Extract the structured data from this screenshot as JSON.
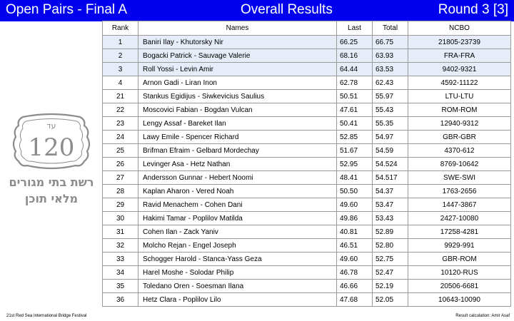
{
  "header": {
    "left_title": "Open Pairs - Final A",
    "center_title": "Overall Results",
    "right_title": "Round 3 [3]"
  },
  "columns": {
    "rank": "Rank",
    "names": "Names",
    "last": "Last",
    "total": "Total",
    "ncbo": "NCBO"
  },
  "rows": [
    {
      "rank": "1",
      "names": "Baniri Ilay - Khutorsky Nir",
      "last": "66.25",
      "total": "66.75",
      "ncbo": "21805-23739",
      "highlight": true
    },
    {
      "rank": "2",
      "names": "Bogacki Patrick - Sauvage Valerie",
      "last": "68.16",
      "total": "63.93",
      "ncbo": "FRA-FRA",
      "highlight": true
    },
    {
      "rank": "3",
      "names": "Roll Yossi - Levin Amir",
      "last": "64.44",
      "total": "63.53",
      "ncbo": "9402-9321",
      "highlight": true
    },
    {
      "rank": "4",
      "names": "Arnon Gadi - Liran Inon",
      "last": "62.78",
      "total": "62.43",
      "ncbo": "4592-11122",
      "highlight": false
    },
    {
      "rank": "21",
      "names": "Stankus Egidijus - Siwkevicius Saulius",
      "last": "50.51",
      "total": "55.97",
      "ncbo": "LTU-LTU",
      "highlight": false
    },
    {
      "rank": "22",
      "names": "Moscovici Fabian - Bogdan Vulcan",
      "last": "47.61",
      "total": "55.43",
      "ncbo": "ROM-ROM",
      "highlight": false
    },
    {
      "rank": "23",
      "names": "Lengy Assaf - Bareket Ilan",
      "last": "50.41",
      "total": "55.35",
      "ncbo": "12940-9312",
      "highlight": false
    },
    {
      "rank": "24",
      "names": "Lawy Emile - Spencer Richard",
      "last": "52.85",
      "total": "54.97",
      "ncbo": "GBR-GBR",
      "highlight": false
    },
    {
      "rank": "25",
      "names": "Brifman Efraim - Gelbard Mordechay",
      "last": "51.67",
      "total": "54.59",
      "ncbo": "4370-612",
      "highlight": false
    },
    {
      "rank": "26",
      "names": "Levinger Asa - Hetz Nathan",
      "last": "52.95",
      "total": "54.524",
      "ncbo": "8769-10642",
      "highlight": false
    },
    {
      "rank": "27",
      "names": "Andersson Gunnar - Hebert Noomi",
      "last": "48.41",
      "total": "54.517",
      "ncbo": "SWE-SWI",
      "highlight": false
    },
    {
      "rank": "28",
      "names": "Kaplan Aharon - Vered Noah",
      "last": "50.50",
      "total": "54.37",
      "ncbo": "1763-2656",
      "highlight": false
    },
    {
      "rank": "29",
      "names": "Ravid Menachem - Cohen Dani",
      "last": "49.60",
      "total": "53.47",
      "ncbo": "1447-3867",
      "highlight": false
    },
    {
      "rank": "30",
      "names": "Hakimi Tamar - Poplilov Matilda",
      "last": "49.86",
      "total": "53.43",
      "ncbo": "2427-10080",
      "highlight": false
    },
    {
      "rank": "31",
      "names": "Cohen Ilan - Zack Yaniv",
      "last": "40.81",
      "total": "52.89",
      "ncbo": "17258-4281",
      "highlight": false
    },
    {
      "rank": "32",
      "names": "Molcho Rejan - Engel Joseph",
      "last": "46.51",
      "total": "52.80",
      "ncbo": "9929-991",
      "highlight": false
    },
    {
      "rank": "33",
      "names": "Schogger Harold - Stanca-Yass Geza",
      "last": "49.60",
      "total": "52.75",
      "ncbo": "GBR-ROM",
      "highlight": false
    },
    {
      "rank": "34",
      "names": "Harel Moshe - Solodar Philip",
      "last": "46.78",
      "total": "52.47",
      "ncbo": "10120-RUS",
      "highlight": false
    },
    {
      "rank": "35",
      "names": "Toledano Oren - Soesman Ilana",
      "last": "46.66",
      "total": "52.19",
      "ncbo": "20506-6681",
      "highlight": false
    },
    {
      "rank": "36",
      "names": "Hetz Clara - Poplilov Lilo",
      "last": "47.68",
      "total": "52.05",
      "ncbo": "10643-10090",
      "highlight": false
    }
  ],
  "logo": {
    "top_text": "עד",
    "number": "120",
    "line1": "רשת בתי מגורים",
    "line2": "מלאי תוכן",
    "color": "#8c8c8c"
  },
  "footer": {
    "left": "21st Red Sea International Bridge Festival",
    "right": "Result calculation: Amir Asaf"
  },
  "colors": {
    "header_bg": "#0000ee",
    "highlight_row": "#e6ecf8",
    "grid": "#9a9a9a"
  }
}
